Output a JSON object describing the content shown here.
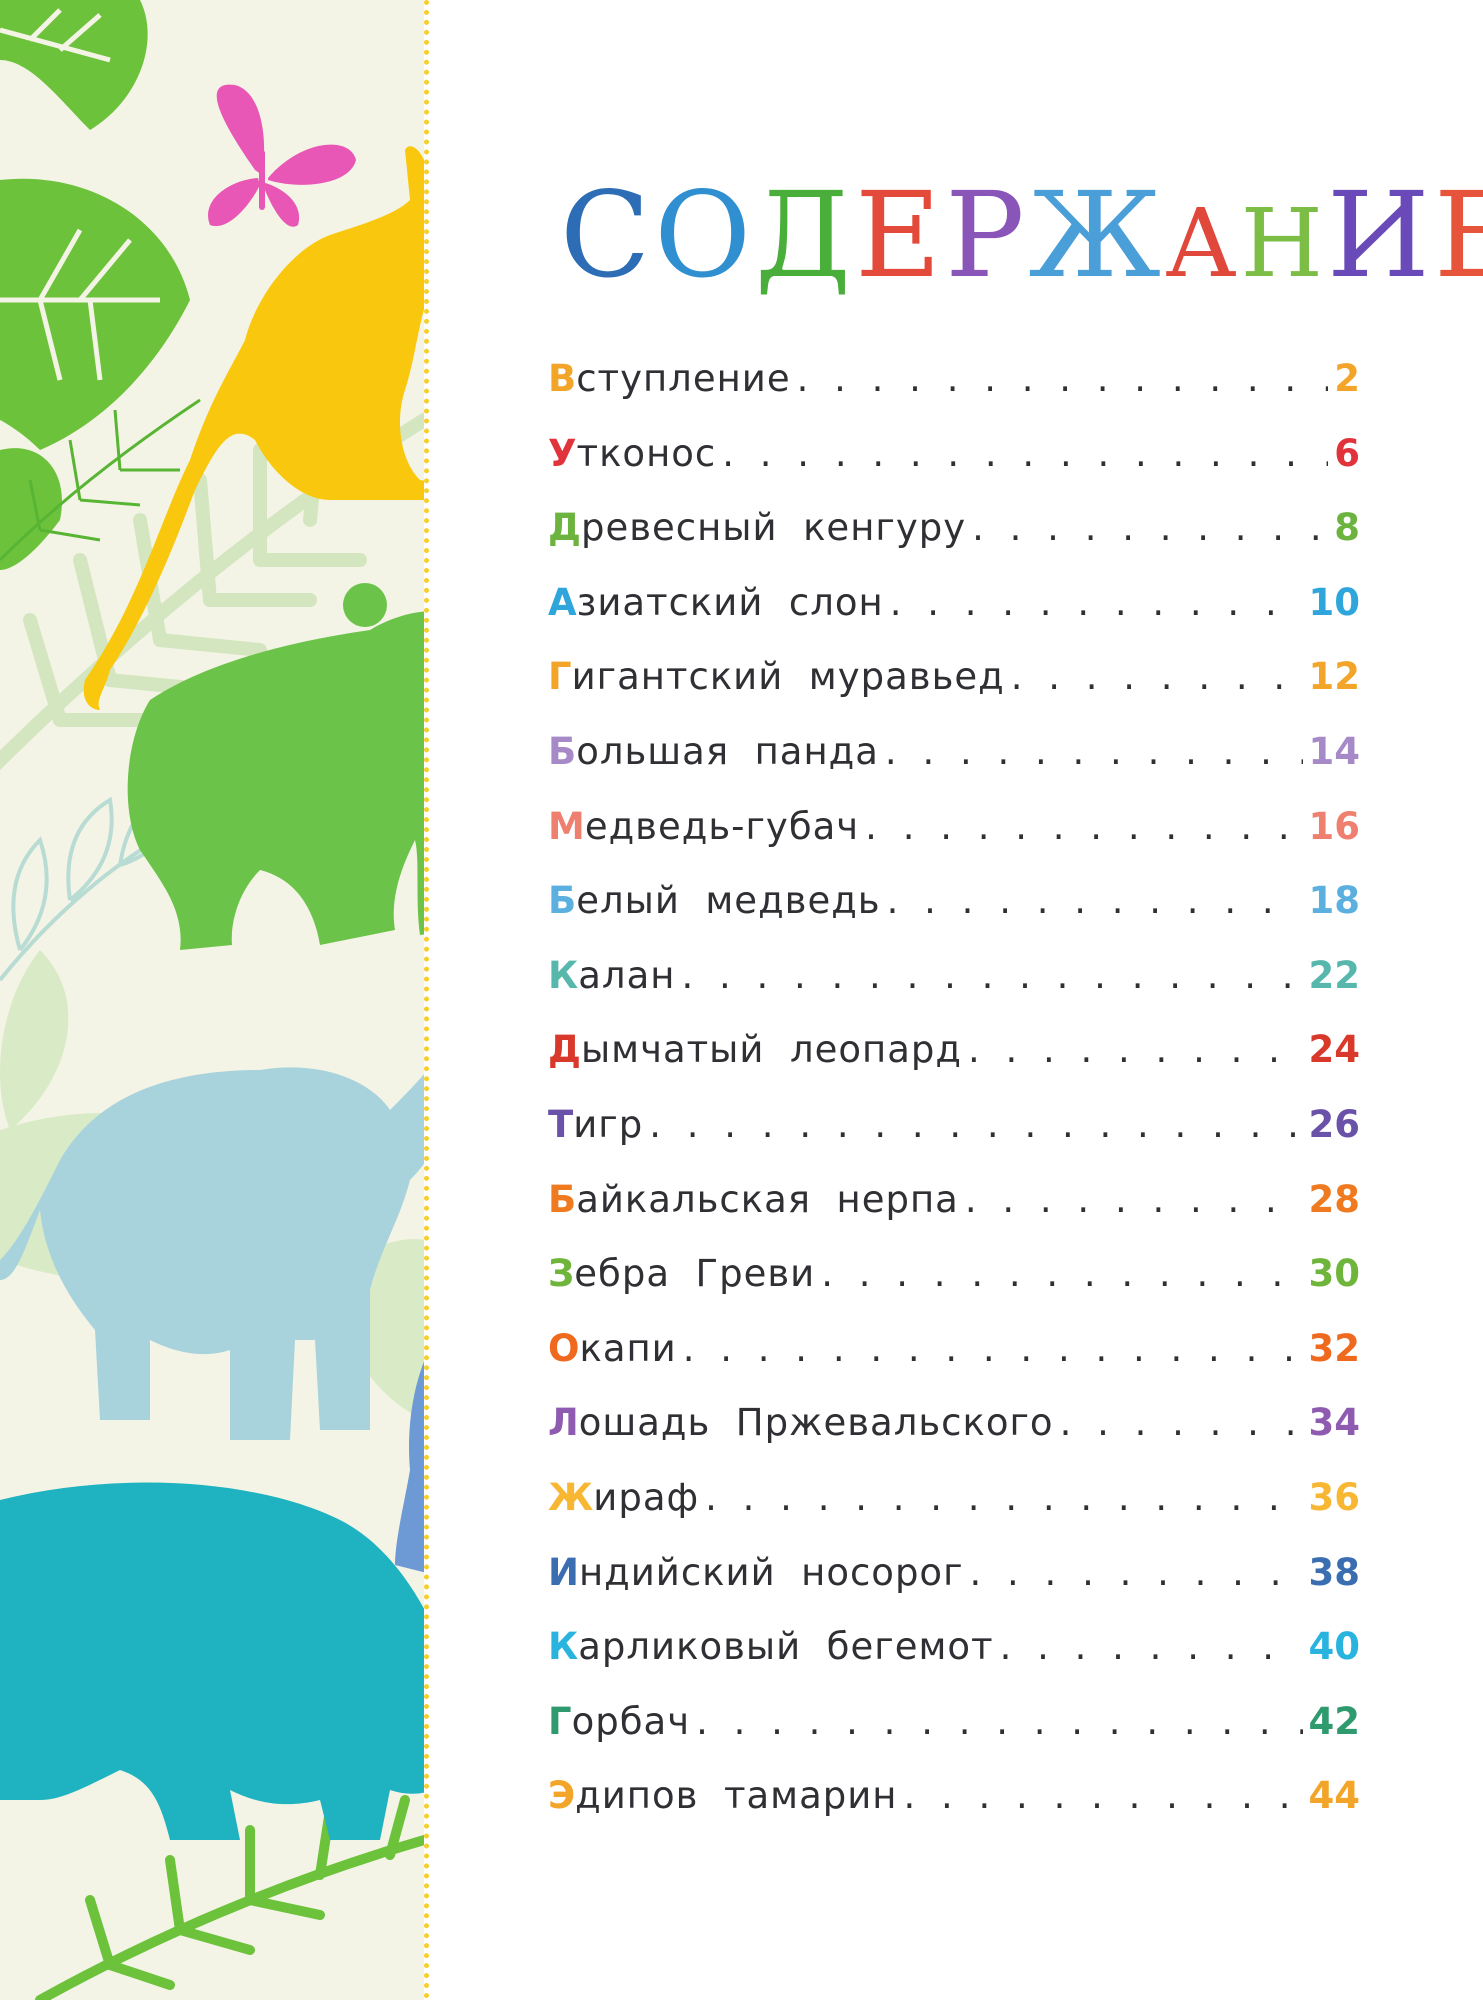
{
  "title": {
    "letters": [
      {
        "char": "С",
        "color": "#2d6db5"
      },
      {
        "char": "О",
        "color": "#2f8fd0"
      },
      {
        "char": "Д",
        "color": "#4aae3b"
      },
      {
        "char": "Е",
        "color": "#e44a3a"
      },
      {
        "char": "Р",
        "color": "#8a55b8"
      },
      {
        "char": "Ж",
        "color": "#4b9fd8"
      },
      {
        "char": "А",
        "color": "#e0483c"
      },
      {
        "char": "Н",
        "color": "#7bbd45"
      },
      {
        "char": "И",
        "color": "#6a4ab8"
      },
      {
        "char": "Е",
        "color": "#e6543c"
      }
    ]
  },
  "toc": [
    {
      "initial": "В",
      "rest": "ступление",
      "page": "2",
      "color": "#f3a52a"
    },
    {
      "initial": "У",
      "rest": "тконос",
      "page": "6",
      "color": "#e0333b"
    },
    {
      "initial": "Д",
      "rest": "ревесный  кенгуру",
      "page": "8",
      "color": "#6db33f"
    },
    {
      "initial": "А",
      "rest": "зиатский  слон",
      "page": "10",
      "color": "#2ea6dc"
    },
    {
      "initial": "Г",
      "rest": "игантский  муравьед",
      "page": "12",
      "color": "#f3a52a"
    },
    {
      "initial": "Б",
      "rest": "ольшая  панда",
      "page": "14",
      "color": "#a68ac8"
    },
    {
      "initial": "М",
      "rest": "едведь-губач",
      "page": "16",
      "color": "#ef7f6f"
    },
    {
      "initial": "Б",
      "rest": "елый  медведь",
      "page": "18",
      "color": "#5bb0e0"
    },
    {
      "initial": "К",
      "rest": "алан",
      "page": "22",
      "color": "#57b7ad"
    },
    {
      "initial": "Д",
      "rest": "ымчатый  леопард",
      "page": "24",
      "color": "#d8392b"
    },
    {
      "initial": "Т",
      "rest": "игр",
      "page": "26",
      "color": "#6a52a8"
    },
    {
      "initial": "Б",
      "rest": "айкальская  нерпа",
      "page": "28",
      "color": "#ef7a1f"
    },
    {
      "initial": "З",
      "rest": "ебра  Греви",
      "page": "30",
      "color": "#6fb53c"
    },
    {
      "initial": "О",
      "rest": "капи",
      "page": "32",
      "color": "#ef6a1e"
    },
    {
      "initial": "Л",
      "rest": "ошадь  Пржевальского",
      "page": "34",
      "color": "#8e5bb0"
    },
    {
      "initial": "Ж",
      "rest": "ираф",
      "page": "36",
      "color": "#f7b733"
    },
    {
      "initial": "И",
      "rest": "ндийский  носорог",
      "page": "38",
      "color": "#3a6eb0"
    },
    {
      "initial": "К",
      "rest": "арликовый  бегемот",
      "page": "40",
      "color": "#29b4e0"
    },
    {
      "initial": "Г",
      "rest": "орбач",
      "page": "42",
      "color": "#2f9a6e"
    },
    {
      "initial": "Э",
      "rest": "дипов  тамарин",
      "page": "44",
      "color": "#f3a52a"
    }
  ],
  "illustration": {
    "animals": [
      "butterfly",
      "kangaroo",
      "bear",
      "elephant",
      "penguin",
      "hippo"
    ],
    "colors": {
      "butterfly": "#e857b5",
      "kangaroo": "#f9c80e",
      "bear": "#6cc34a",
      "elephant": "#a9d3dc",
      "penguin": "#6d9ad4",
      "hippo": "#1fb2c0",
      "leaf_dark": "#5dbb2f",
      "leaf_light": "#cfe6b8",
      "panel_bg": "#f4f4e6",
      "divider": "#f6cf2a"
    }
  }
}
